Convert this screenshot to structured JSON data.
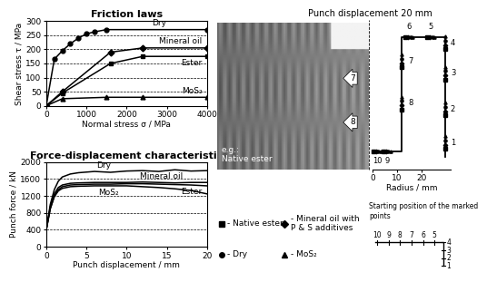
{
  "chart_data": [
    {
      "type": "line",
      "title": "Friction laws",
      "xlabel": "Normal stress σ / MPa",
      "ylabel": "Shear stress τ / MPa",
      "xlim": [
        0,
        4000
      ],
      "xticks": [
        0,
        1000,
        2000,
        3000,
        4000
      ],
      "ylim": [
        0,
        300
      ],
      "yticks": [
        0,
        50,
        100,
        150,
        200,
        250,
        300
      ],
      "grid": "y",
      "series": [
        {
          "name": "Dry",
          "color": "#000000",
          "marker": "circle",
          "x": [
            0,
            200,
            400,
            600,
            800,
            1000,
            1200,
            1500,
            4000
          ],
          "values": [
            0,
            165,
            195,
            220,
            240,
            255,
            262,
            270,
            270
          ]
        },
        {
          "name": "Mineral oil",
          "color": "#000000",
          "marker": "diamond",
          "x": [
            0,
            400,
            1600,
            2400,
            4000
          ],
          "values": [
            0,
            50,
            190,
            205,
            205
          ]
        },
        {
          "name": "Ester",
          "color": "#000000",
          "marker": "square",
          "x": [
            0,
            400,
            1600,
            2400,
            4000
          ],
          "values": [
            0,
            45,
            150,
            175,
            175
          ]
        },
        {
          "name": "MoS₂",
          "color": "#000000",
          "marker": "triangle",
          "x": [
            0,
            400,
            1500,
            2400,
            4000
          ],
          "values": [
            0,
            25,
            30,
            30,
            30
          ]
        }
      ]
    },
    {
      "type": "line",
      "title": "Force-displacement characteristic",
      "xlabel": "Punch displacement / mm",
      "ylabel": "Punch force / kN",
      "xlim": [
        0,
        20
      ],
      "xticks": [
        0,
        5,
        10,
        15,
        20
      ],
      "ylim": [
        0,
        2000
      ],
      "yticks": [
        0,
        400,
        800,
        1200,
        1600,
        2000
      ],
      "grid": "y",
      "series": [
        {
          "name": "Dry",
          "color": "#000000",
          "x": [
            0,
            0.5,
            1,
            1.5,
            2,
            3,
            4,
            6,
            8,
            10,
            12,
            14,
            16,
            18,
            20
          ],
          "values": [
            400,
            1000,
            1350,
            1550,
            1650,
            1720,
            1750,
            1780,
            1760,
            1790,
            1800,
            1780,
            1820,
            1790,
            1800
          ]
        },
        {
          "name": "Mineral oil",
          "color": "#000000",
          "x": [
            0,
            0.5,
            1,
            1.5,
            2,
            3,
            4,
            6,
            8,
            10,
            12,
            14,
            16,
            18,
            20
          ],
          "values": [
            400,
            950,
            1250,
            1400,
            1460,
            1500,
            1510,
            1520,
            1520,
            1520,
            1530,
            1520,
            1510,
            1520,
            1520
          ]
        },
        {
          "name": "Ester",
          "color": "#000000",
          "x": [
            0,
            0.5,
            1,
            1.5,
            2,
            3,
            4,
            6,
            8,
            10,
            12,
            14,
            16,
            18,
            20
          ],
          "values": [
            400,
            900,
            1200,
            1350,
            1420,
            1460,
            1470,
            1480,
            1480,
            1490,
            1490,
            1480,
            1470,
            1460,
            1440
          ]
        },
        {
          "name": "MoS₂",
          "color": "#000000",
          "x": [
            0,
            0.5,
            1,
            1.5,
            2,
            3,
            4,
            6,
            8,
            10,
            12,
            14,
            16,
            18,
            20
          ],
          "values": [
            400,
            900,
            1180,
            1320,
            1380,
            1420,
            1430,
            1440,
            1440,
            1440,
            1420,
            1400,
            1370,
            1330,
            1250
          ]
        }
      ]
    }
  ],
  "diagram": {
    "photo": {
      "caption": "e.g.:\nNative ester",
      "marks": [
        "7",
        "8"
      ]
    },
    "profile": {
      "title": "Punch displacement 20 mm",
      "xlabel": "Radius / mm",
      "xlim": [
        0,
        32
      ],
      "xticks": [
        0,
        10,
        20
      ],
      "points": [
        "1",
        "2",
        "3",
        "4",
        "5",
        "6",
        "7",
        "8",
        "9",
        "10"
      ]
    },
    "start": {
      "caption": "Starting position of the marked points",
      "top_points": [
        "10",
        "9",
        "8",
        "7",
        "6",
        "5"
      ],
      "side_points": [
        "4",
        "3",
        "2",
        "1"
      ]
    },
    "legend": [
      {
        "label": "- Native ester",
        "marker": "square"
      },
      {
        "label": "- Mineral oil with\nP & S additives",
        "marker": "diamond"
      },
      {
        "label": "- Dry",
        "marker": "circle"
      },
      {
        "label": "- MoS₂",
        "marker": "triangle"
      }
    ]
  }
}
